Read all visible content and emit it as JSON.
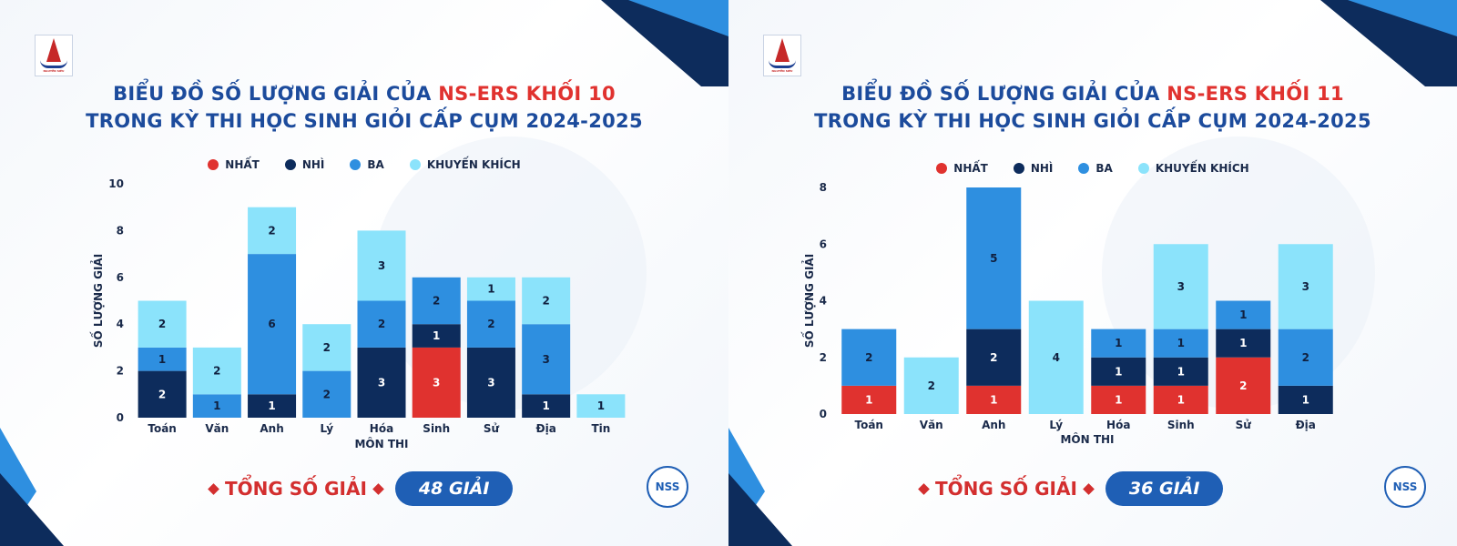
{
  "colors": {
    "nhat": "#e0322f",
    "nhi": "#0d2c5c",
    "ba": "#2e8fe0",
    "kk": "#8be3fb",
    "title": "#1c4b9c",
    "accent": "#e0322f",
    "pill": "#1f5fb5"
  },
  "legend": [
    "NHẤT",
    "NHÌ",
    "BA",
    "KHUYẾN KHÍCH"
  ],
  "logo_text": "NGUYỄN SIÊU",
  "badge_text": "NSS",
  "panels": [
    {
      "title_line1_a": "BIỂU ĐỒ SỐ LƯỢNG GIẢI CỦA ",
      "title_line1_b": "NS-ERS KHỐI 10",
      "title_line2": "TRONG KỲ THI HỌC SINH GIỎI CẤP CỤM 2024-2025",
      "total_label": "TỔNG SỐ GIẢI",
      "total_value": "48 GIẢI"
    },
    {
      "title_line1_a": "BIỂU ĐỒ SỐ LƯỢNG GIẢI CỦA ",
      "title_line1_b": "NS-ERS KHỐI 11",
      "title_line2": "TRONG KỲ THI HỌC SINH GIỎI CẤP CỤM 2024-2025",
      "total_label": "TỔNG SỐ GIẢI",
      "total_value": "36 GIẢI"
    }
  ],
  "chart_data": [
    {
      "type": "bar",
      "stacked": true,
      "xlabel": "MÔN THI",
      "ylabel": "SỐ LƯỢNG GIẢI",
      "ylim": [
        0,
        10
      ],
      "yticks": [
        0,
        2,
        4,
        6,
        8,
        10
      ],
      "categories": [
        "Toán",
        "Văn",
        "Anh",
        "Lý",
        "Hóa",
        "Sinh",
        "Sử",
        "Địa",
        "Tin"
      ],
      "series": [
        {
          "name": "NHẤT",
          "values": [
            0,
            0,
            0,
            0,
            0,
            3,
            0,
            0,
            0
          ]
        },
        {
          "name": "NHÌ",
          "values": [
            2,
            0,
            1,
            0,
            3,
            1,
            3,
            1,
            0
          ]
        },
        {
          "name": "BA",
          "values": [
            1,
            1,
            6,
            2,
            2,
            2,
            2,
            3,
            0
          ]
        },
        {
          "name": "KHUYẾN KHÍCH",
          "values": [
            2,
            2,
            2,
            2,
            3,
            0,
            1,
            2,
            1
          ]
        }
      ]
    },
    {
      "type": "bar",
      "stacked": true,
      "xlabel": "MÔN THI",
      "ylabel": "SỐ LƯỢNG GIẢI",
      "ylim": [
        0,
        8
      ],
      "yticks": [
        0,
        2,
        4,
        6,
        8
      ],
      "categories": [
        "Toán",
        "Văn",
        "Anh",
        "Lý",
        "Hóa",
        "Sinh",
        "Sử",
        "Địa"
      ],
      "series": [
        {
          "name": "NHẤT",
          "values": [
            1,
            0,
            1,
            0,
            1,
            1,
            2,
            0
          ]
        },
        {
          "name": "NHÌ",
          "values": [
            0,
            0,
            2,
            0,
            1,
            1,
            1,
            1
          ]
        },
        {
          "name": "BA",
          "values": [
            2,
            0,
            5,
            0,
            1,
            1,
            1,
            2
          ]
        },
        {
          "name": "KHUYẾN KHÍCH",
          "values": [
            0,
            2,
            0,
            4,
            0,
            3,
            0,
            3
          ]
        }
      ]
    }
  ]
}
